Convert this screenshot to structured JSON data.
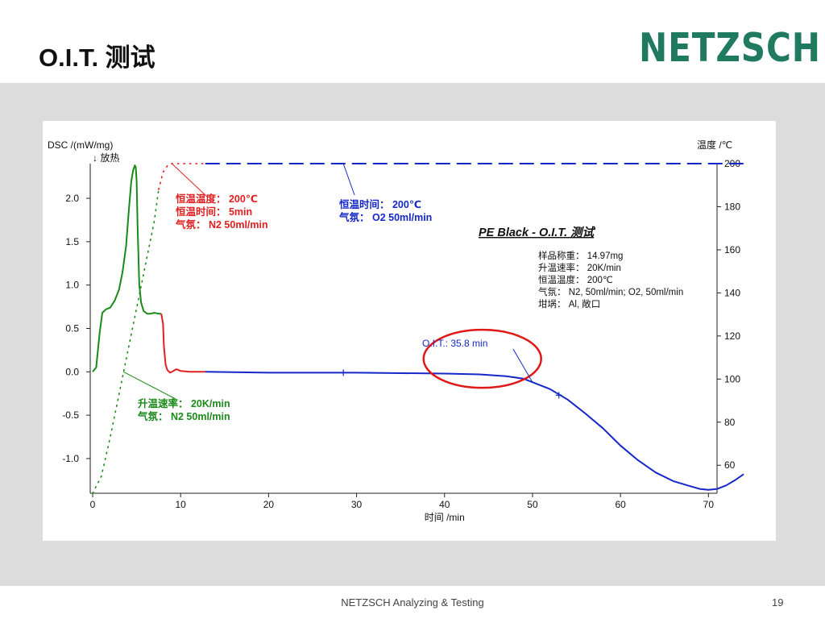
{
  "slide": {
    "title": "O.I.T. 测试",
    "logo_text": "NETZSCH",
    "footer": "NETZSCH Analyzing & Testing",
    "page_number": "19"
  },
  "colors": {
    "brand": "#1f7a5f",
    "dsc_heating": "#1a8a1a",
    "dsc_n2_hold": "#e02020",
    "dsc_o2_hold": "#1428c8",
    "temperature_heating": "#1a8a1a",
    "temperature_n2_hold": "#e02020",
    "temperature_o2_hold": "#1428c8",
    "oit_marker": "#e01818"
  },
  "chart_data": {
    "type": "line",
    "title": "PE Black - O.I.T. 测试",
    "xlabel": "时间 /min",
    "ylabel": "DSC /(mW/mg)",
    "ylabel_note": "↓ 放热",
    "y2label": "温度 /℃",
    "xlim": [
      0,
      74
    ],
    "ylim": [
      -1.4,
      2.4
    ],
    "y2lim": [
      47,
      200
    ],
    "x_ticks": [
      0,
      10,
      20,
      30,
      40,
      50,
      60,
      70
    ],
    "y_ticks": [
      -1.0,
      -0.5,
      0.0,
      0.5,
      1.0,
      1.5,
      2.0
    ],
    "y_tick_labels": [
      "-1.0",
      "-0.5",
      "0.0",
      "0.5",
      "1.0",
      "1.5",
      "2.0"
    ],
    "y2_ticks": [
      60,
      80,
      100,
      120,
      140,
      160,
      180,
      200
    ],
    "grid": false,
    "series": [
      {
        "axis": "dsc",
        "style": "solid",
        "color": "#1a8a1a",
        "x": [
          0,
          0.4,
          0.8,
          1.1,
          1.5,
          2.0,
          2.5,
          3.0,
          3.4,
          3.8,
          4.1,
          4.4,
          4.6,
          4.8,
          4.9,
          5.0,
          5.1,
          5.3,
          5.5,
          5.8,
          6.2,
          6.6,
          7.0,
          7.5,
          7.8
        ],
        "y": [
          0.0,
          0.05,
          0.45,
          0.68,
          0.72,
          0.74,
          0.82,
          0.95,
          1.15,
          1.45,
          1.85,
          2.2,
          2.32,
          2.38,
          2.36,
          2.2,
          1.7,
          1.0,
          0.8,
          0.7,
          0.67,
          0.67,
          0.68,
          0.67,
          0.67
        ]
      },
      {
        "axis": "dsc",
        "style": "solid",
        "color": "#e02020",
        "x": [
          7.8,
          8.0,
          8.1,
          8.3,
          8.5,
          8.8,
          9.0,
          9.5,
          10.0,
          11.0,
          12.0,
          12.8
        ],
        "y": [
          0.67,
          0.55,
          0.3,
          0.08,
          0.02,
          -0.01,
          0.0,
          0.03,
          0.01,
          0.0,
          0.0,
          0.0
        ]
      },
      {
        "axis": "dsc",
        "style": "solid",
        "color": "#1428c8",
        "x": [
          12.8,
          20,
          30,
          40,
          44,
          47,
          49,
          50,
          52,
          54,
          56,
          58,
          60,
          62,
          64,
          66,
          68,
          69,
          70,
          71,
          72,
          73,
          74
        ],
        "y": [
          0.0,
          -0.01,
          -0.01,
          -0.02,
          -0.03,
          -0.05,
          -0.08,
          -0.12,
          -0.2,
          -0.32,
          -0.48,
          -0.65,
          -0.85,
          -1.02,
          -1.16,
          -1.26,
          -1.32,
          -1.35,
          -1.36,
          -1.35,
          -1.31,
          -1.25,
          -1.18
        ]
      },
      {
        "axis": "temperature",
        "style": "dotted",
        "color": "#1a8a1a",
        "x": [
          0,
          1,
          2,
          3,
          4,
          5,
          6,
          7,
          7.5
        ],
        "y": [
          47,
          55,
          73,
          93,
          113,
          133,
          153,
          173,
          188
        ]
      },
      {
        "axis": "temperature",
        "style": "dotted",
        "color": "#e02020",
        "x": [
          7.5,
          8.0,
          8.5,
          9,
          10,
          11,
          12,
          12.8
        ],
        "y": [
          188,
          196,
          199,
          200,
          200,
          200,
          200,
          200
        ]
      },
      {
        "axis": "temperature",
        "style": "dashed",
        "color": "#1428c8",
        "x": [
          12.8,
          74
        ],
        "y": [
          200,
          200
        ]
      }
    ],
    "markers": [
      {
        "x": 28.5,
        "y": -0.01
      },
      {
        "x": 53.0,
        "y": -0.27
      }
    ],
    "annotations": {
      "n2_hold": [
        "恒温温度： 200℃",
        "恒温时间： 5min",
        "气氛： N2  50ml/min"
      ],
      "o2_hold": [
        "恒温时间： 200℃",
        "气氛： O2  50ml/min"
      ],
      "heating": [
        "升温速率： 20K/min",
        "气氛： N2   50ml/min"
      ],
      "sample_info": [
        "样品称重： 14.97mg",
        "升温速率： 20K/min",
        "恒温温度： 200℃",
        "气氛： N2, 50ml/min; O2, 50ml/min",
        "坩埚： Al, 敞口"
      ],
      "oit": "O.I.T.: 35.8 min"
    }
  }
}
